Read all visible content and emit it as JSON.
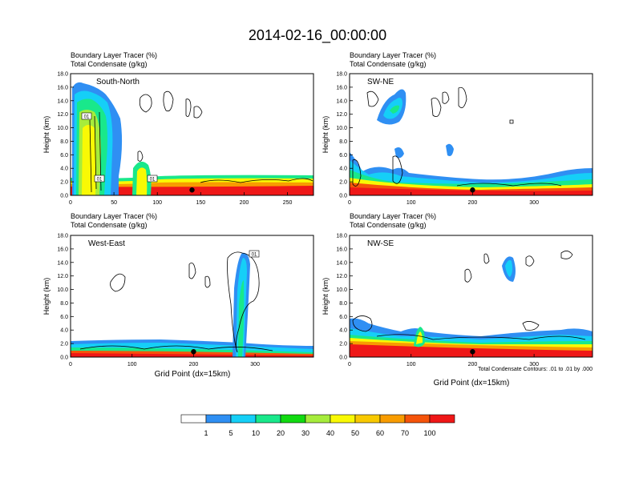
{
  "title": "2014-02-16_00:00:00",
  "footnote": "Total Condensate Contours: .01 to .01 by .000",
  "colors": {
    "bins": [
      "#ffffff",
      "#2f8ff3",
      "#15cff7",
      "#19e88b",
      "#11da11",
      "#a6ec3c",
      "#f9f904",
      "#f8c900",
      "#f89c00",
      "#f5540a",
      "#ef1717"
    ],
    "contour": "#000000"
  },
  "colorbar": {
    "labels": [
      "1",
      "5",
      "10",
      "20",
      "30",
      "40",
      "50",
      "60",
      "70",
      "100"
    ]
  },
  "chart_data": [
    {
      "type": "heatmap",
      "panel_label": "South-North",
      "subtitle_line1": "Boundary Layer Tracer   (%)",
      "subtitle_line2": "Total Condensate   (g/kg)",
      "ylabel": "Height (km)",
      "xlabel": "",
      "xlim": [
        0,
        280
      ],
      "ylim": [
        0,
        18
      ],
      "xticks": [
        "0",
        "50",
        "100",
        "150",
        "200",
        "250"
      ],
      "yticks": [
        "0.0",
        "2.0",
        "4.0",
        "6.0",
        "8.0",
        "10.0",
        "12.0",
        "14.0",
        "16.0",
        "18.0"
      ],
      "contour_labels": [
        "01",
        "01",
        "01"
      ],
      "site_marker_x": 140
    },
    {
      "type": "heatmap",
      "panel_label": "SW-NE",
      "subtitle_line1": "Boundary Layer Tracer   (%)",
      "subtitle_line2": "Total Condensate   (g/kg)",
      "ylabel": "Height (km)",
      "xlabel": "",
      "xlim": [
        0,
        395
      ],
      "ylim": [
        0,
        18
      ],
      "xticks": [
        "0",
        "100",
        "200",
        "300"
      ],
      "yticks": [
        "0.0",
        "2.0",
        "4.0",
        "6.0",
        "8.0",
        "10.0",
        "12.0",
        "14.0",
        "16.0",
        "18.0"
      ],
      "contour_labels": [],
      "site_marker_x": 200
    },
    {
      "type": "heatmap",
      "panel_label": "West-East",
      "subtitle_line1": "Boundary Layer Tracer   (%)",
      "subtitle_line2": "Total Condensate   (g/kg)",
      "ylabel": "Height (km)",
      "xlabel": "Grid Point (dx=15km)",
      "xlim": [
        0,
        395
      ],
      "ylim": [
        0,
        18
      ],
      "xticks": [
        "0",
        "100",
        "200",
        "300"
      ],
      "yticks": [
        "0.0",
        "2.0",
        "4.0",
        "6.0",
        "8.0",
        "10.0",
        "12.0",
        "14.0",
        "16.0",
        "18.0"
      ],
      "contour_labels": [
        "01"
      ],
      "site_marker_x": 200
    },
    {
      "type": "heatmap",
      "panel_label": "NW-SE",
      "subtitle_line1": "Boundary Layer Tracer   (%)",
      "subtitle_line2": "Total Condensate   (g/kg)",
      "ylabel": "Height (km)",
      "xlabel": "Grid Point (dx=15km)",
      "xlim": [
        0,
        395
      ],
      "ylim": [
        0,
        18
      ],
      "xticks": [
        "0",
        "100",
        "200",
        "300"
      ],
      "yticks": [
        "0.0",
        "2.0",
        "4.0",
        "6.0",
        "8.0",
        "10.0",
        "12.0",
        "14.0",
        "16.0",
        "18.0"
      ],
      "contour_labels": [],
      "site_marker_x": 200
    }
  ]
}
